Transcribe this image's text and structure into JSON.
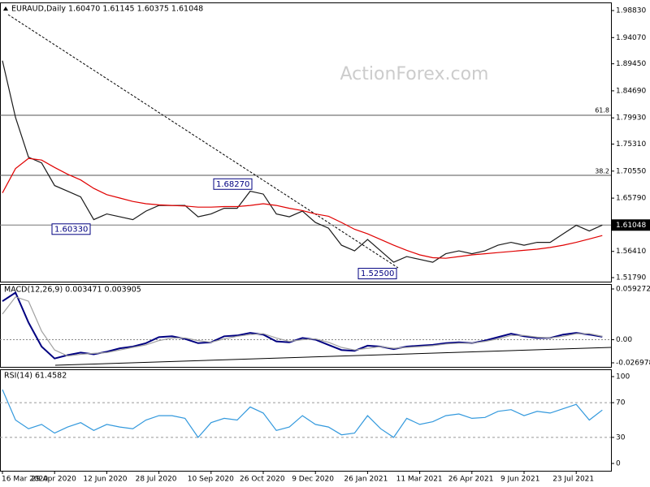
{
  "chart_data": [
    {
      "type": "line",
      "title": "EURAUD,Daily  1.60470 1.61145 1.60375 1.61048",
      "watermark": "ActionForex.com",
      "categories": [
        "16 Mar 2020",
        null,
        null,
        null,
        "29 Apr 2020",
        null,
        null,
        null,
        "12 Jun 2020",
        null,
        null,
        null,
        "28 Jul 2020",
        null,
        null,
        null,
        "10 Sep 2020",
        null,
        null,
        null,
        "26 Oct 2020",
        null,
        null,
        null,
        "9 Dec 2020",
        null,
        null,
        null,
        "26 Jan 2021",
        null,
        null,
        null,
        "11 Mar 2021",
        null,
        null,
        null,
        "26 Apr 2021",
        null,
        null,
        null,
        "9 Jun 2021",
        null,
        null,
        null,
        "23 Jul 2021",
        null,
        null
      ],
      "series": [
        {
          "color": "#1a1a1a",
          "values": [
            1.9,
            1.8,
            1.73,
            1.72,
            1.68,
            1.67,
            1.66,
            1.62,
            1.63,
            1.625,
            1.62,
            1.635,
            1.645,
            1.645,
            1.645,
            1.625,
            1.63,
            1.64,
            1.64,
            1.67,
            1.665,
            1.63,
            1.625,
            1.635,
            1.615,
            1.605,
            1.575,
            1.565,
            1.585,
            1.565,
            1.545,
            1.555,
            1.55,
            1.545,
            1.56,
            1.565,
            1.56,
            1.565,
            1.575,
            1.58,
            1.575,
            1.58,
            1.58,
            1.595,
            1.61,
            1.6,
            1.61048
          ]
        },
        {
          "color": "#e00000",
          "values": [
            1.667,
            1.71,
            1.728,
            1.725,
            1.712,
            1.7,
            1.69,
            1.675,
            1.664,
            1.658,
            1.652,
            1.648,
            1.646,
            1.645,
            1.644,
            1.642,
            1.642,
            1.643,
            1.643,
            1.645,
            1.648,
            1.645,
            1.64,
            1.636,
            1.63,
            1.626,
            1.615,
            1.603,
            1.595,
            1.585,
            1.575,
            1.566,
            1.558,
            1.553,
            1.552,
            1.555,
            1.558,
            1.56,
            1.562,
            1.564,
            1.566,
            1.568,
            1.571,
            1.575,
            1.58,
            1.586,
            1.592
          ]
        }
      ],
      "ylim": [
        1.5108,
        2.0026
      ],
      "yticks": [
        {
          "value": 1.9883,
          "label": "1.98830"
        },
        {
          "value": 1.9407,
          "label": "1.94070"
        },
        {
          "value": 1.8945,
          "label": "1.89450"
        },
        {
          "value": 1.8469,
          "label": "1.84690"
        },
        {
          "value": 1.7993,
          "label": "1.79930"
        },
        {
          "value": 1.7531,
          "label": "1.75310"
        },
        {
          "value": 1.7055,
          "label": "1.70550"
        },
        {
          "value": 1.6579,
          "label": "1.65790"
        },
        {
          "value": 1.5641,
          "label": "1.56410"
        },
        {
          "value": 1.5179,
          "label": "1.51790"
        }
      ],
      "last_price": {
        "value": 1.61048,
        "label": "1.61048"
      },
      "annotations": [
        {
          "value": 1.6827,
          "label": "1.68270"
        },
        {
          "value": 1.6033,
          "label": "1.60330"
        },
        {
          "value": 1.525,
          "label": "1.52500"
        }
      ],
      "fib_labels": [
        "61.8",
        "38.2"
      ]
    },
    {
      "type": "line",
      "title": "MACD(12,26,9) 0.003471 0.003905",
      "series": [
        {
          "color": "#000080",
          "values": [
            0.045,
            0.055,
            0.02,
            -0.008,
            -0.022,
            -0.018,
            -0.015,
            -0.017,
            -0.014,
            -0.01,
            -0.008,
            -0.004,
            0.003,
            0.004,
            0.001,
            -0.004,
            -0.003,
            0.004,
            0.005,
            0.008,
            0.006,
            -0.002,
            -0.003,
            0.002,
            0.0,
            -0.006,
            -0.012,
            -0.013,
            -0.007,
            -0.008,
            -0.011,
            -0.008,
            -0.007,
            -0.006,
            -0.004,
            -0.003,
            -0.004,
            -0.001,
            0.003,
            0.007,
            0.004,
            0.002,
            0.002,
            0.006,
            0.008,
            0.006,
            0.003471
          ]
        },
        {
          "color": "#a0a0a0",
          "values": [
            0.03,
            0.05,
            0.045,
            0.01,
            -0.012,
            -0.019,
            -0.017,
            -0.016,
            -0.015,
            -0.012,
            -0.009,
            -0.006,
            -0.001,
            0.002,
            0.002,
            -0.001,
            -0.003,
            0.001,
            0.004,
            0.006,
            0.007,
            0.002,
            -0.002,
            0.0,
            0.001,
            -0.003,
            -0.009,
            -0.012,
            -0.01,
            -0.008,
            -0.01,
            -0.009,
            -0.008,
            -0.007,
            -0.005,
            -0.004,
            -0.004,
            -0.002,
            0.001,
            0.005,
            0.005,
            0.003,
            0.002,
            0.004,
            0.007,
            0.007,
            0.003905
          ]
        }
      ],
      "ylim": [
        -0.03172,
        0.06496
      ],
      "yticks": [
        0.059272,
        {
          "value": 0,
          "label": "0.00"
        },
        -0.026978
      ],
      "zero_line": true
    },
    {
      "type": "line",
      "title": "RSI(14) 61.4582",
      "series": [
        {
          "color": "#3399dd",
          "values": [
            85,
            50,
            40,
            45,
            35,
            42,
            47,
            38,
            45,
            42,
            40,
            50,
            55,
            55,
            52,
            30,
            47,
            52,
            50,
            65,
            58,
            38,
            42,
            55,
            45,
            42,
            33,
            35,
            55,
            40,
            30,
            52,
            45,
            48,
            55,
            57,
            52,
            53,
            60,
            62,
            55,
            60,
            58,
            63,
            68,
            50,
            61.4582
          ]
        }
      ],
      "ylim": [
        -8.4,
        108.4
      ],
      "yticks": [
        100,
        70,
        30,
        0
      ],
      "levels": [
        70,
        30
      ]
    }
  ]
}
